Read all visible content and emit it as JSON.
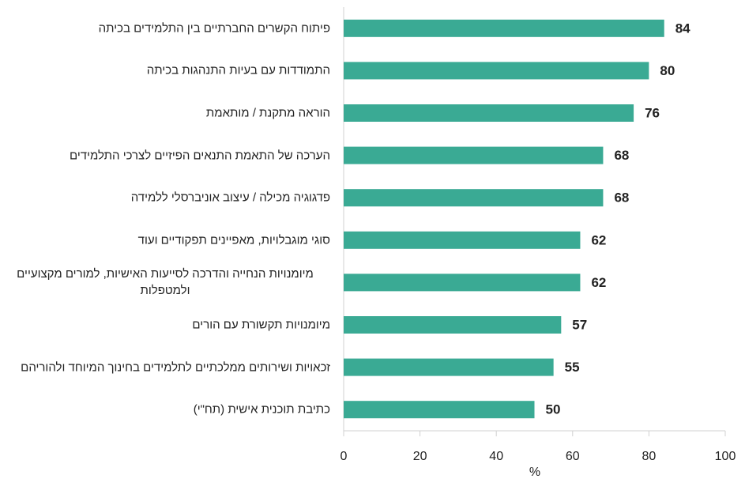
{
  "chart_data": {
    "type": "bar",
    "orientation": "horizontal",
    "categories": [
      "פיתוח הקשרים החברתיים בין התלמידים בכיתה",
      "התמודדות עם בעיות התנהגות בכיתה",
      "הוראה מתקנת / מותאמת",
      "הערכה של התאמת התנאים הפיזיים לצרכי התלמידים",
      "פדגוגיה מכילה / עיצוב אוניברסלי ללמידה",
      "סוגי מוגבלויות, מאפיינים תפקודיים ועוד",
      "מיומנויות הנחייה והדרכה לסייעות האישיות, למורים מקצועיים ולמטפלות",
      "מיומנויות תקשורת עם הורים",
      "זכאויות ושירותים ממלכתיים לתלמידים בחינוך המיוחד ולהוריהם",
      "כתיבת תוכנית אישית (תח\"י)"
    ],
    "values": [
      84,
      80,
      76,
      68,
      68,
      62,
      62,
      57,
      55,
      50
    ],
    "color": "#3aaa94",
    "xlabel": "%",
    "xlim": [
      0,
      100
    ],
    "xticks": [
      0,
      20,
      40,
      60,
      80,
      100
    ]
  }
}
